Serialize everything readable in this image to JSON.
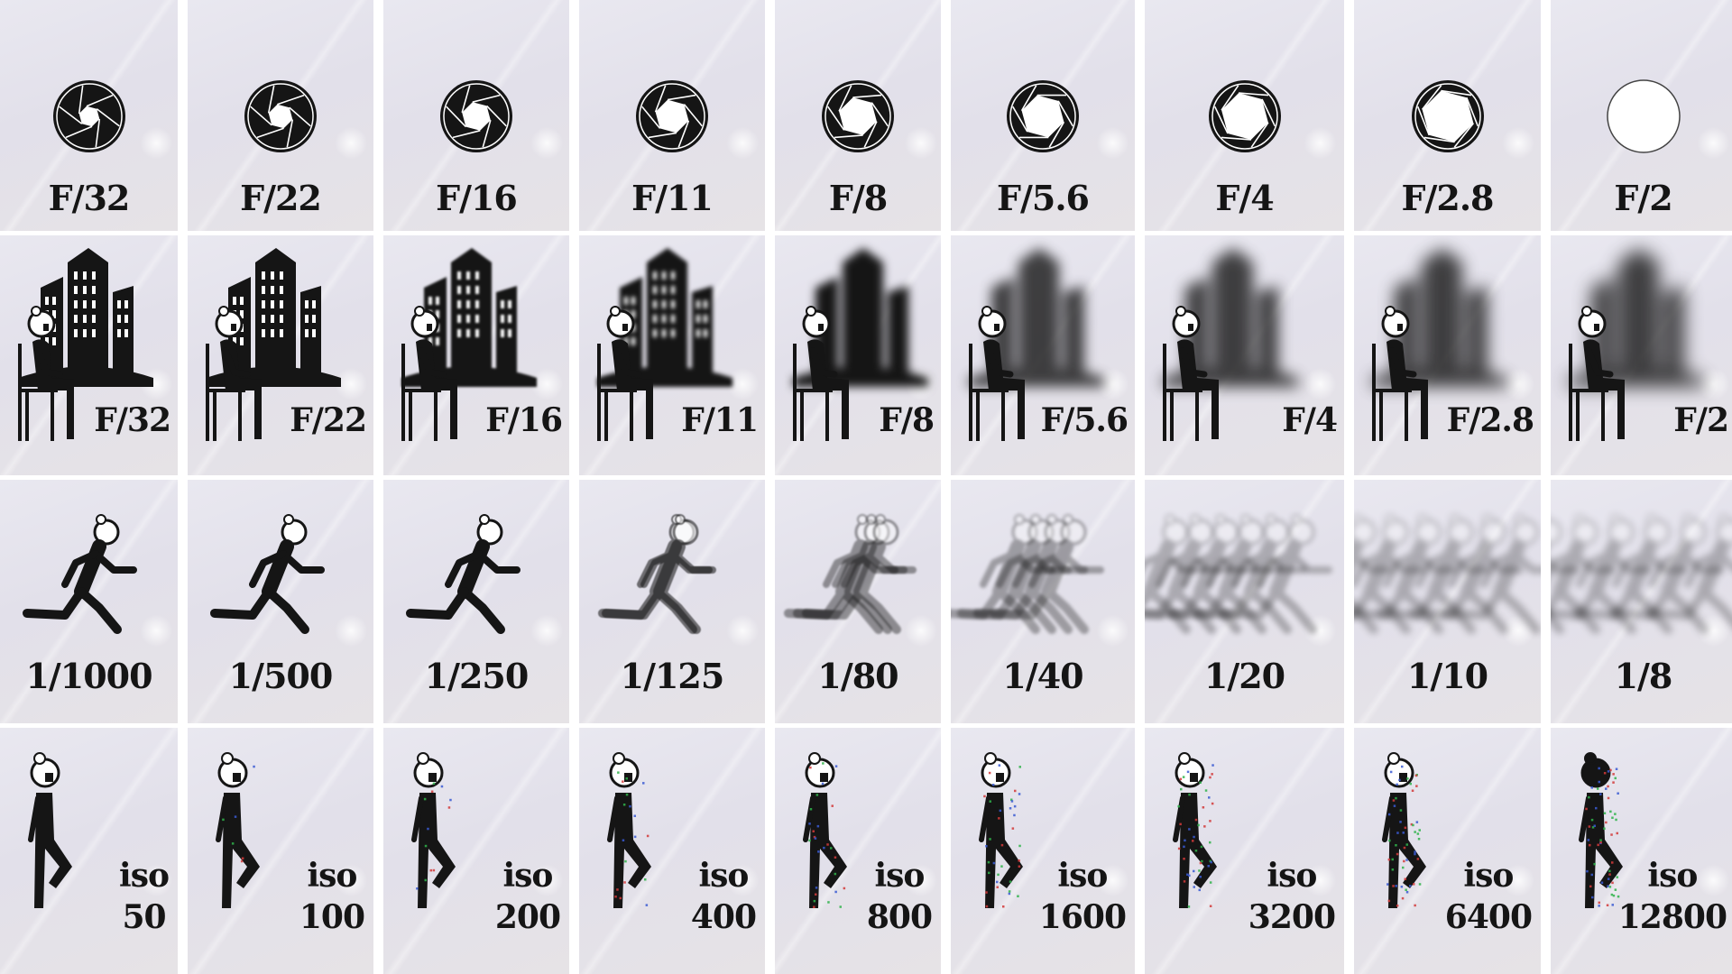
{
  "rows": {
    "aperture": {
      "labels": [
        "F/32",
        "F/22",
        "F/16",
        "F/11",
        "F/8",
        "F/5.6",
        "F/4",
        "F/2.8",
        "F/2"
      ],
      "openings": [
        0.22,
        0.3,
        0.4,
        0.5,
        0.6,
        0.7,
        0.8,
        0.9,
        1.0
      ]
    },
    "depth_of_field": {
      "labels": [
        "F/32",
        "F/22",
        "F/16",
        "F/11",
        "F/8",
        "F/5.6",
        "F/4",
        "F/2.8",
        "F/2"
      ],
      "background_blur": [
        0,
        0.3,
        1.2,
        2.5,
        5,
        7,
        8,
        9,
        10
      ]
    },
    "shutter_speed": {
      "labels": [
        "1/1000",
        "1/500",
        "1/250",
        "1/125",
        "1/80",
        "1/40",
        "1/20",
        "1/10",
        "1/8"
      ],
      "motion_blur": [
        0,
        0,
        0.3,
        1,
        2.5,
        4.5,
        7,
        9,
        10
      ]
    },
    "iso": {
      "prefix": "iso",
      "values": [
        "50",
        "100",
        "200",
        "400",
        "800",
        "1600",
        "3200",
        "6400",
        "12800"
      ],
      "noise": [
        0,
        0.1,
        0.2,
        0.3,
        0.45,
        0.6,
        0.75,
        0.9,
        1.0
      ]
    }
  },
  "colors": {
    "ink": "#151515",
    "background": "#e4e2ea",
    "noise_red": "#d23a3a",
    "noise_green": "#2fb34a",
    "noise_blue": "#3a5ad2"
  },
  "icons": {
    "aperture": "aperture-icon",
    "city": "city-buildings-icon",
    "seated_person": "seated-person-icon",
    "running_person": "running-person-icon",
    "standing_person": "standing-person-icon"
  }
}
